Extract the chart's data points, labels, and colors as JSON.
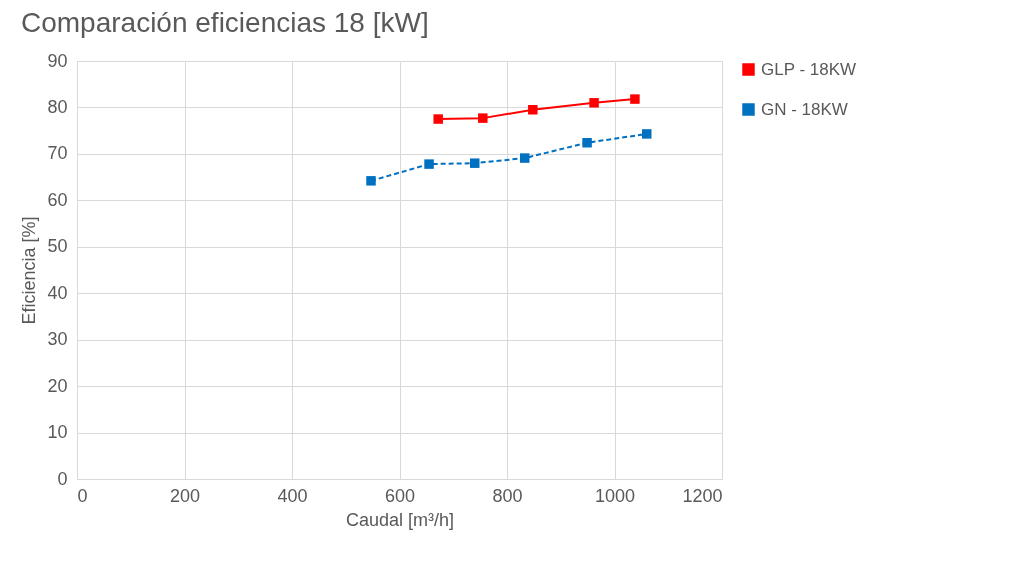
{
  "chart_data": {
    "type": "line",
    "title": "Comparación eficiencias 18 [kW]",
    "xlabel": "Caudal [m³/h]",
    "ylabel": "Eficiencia [%]",
    "xlim": [
      0,
      1200
    ],
    "xticks": [
      0,
      200,
      400,
      600,
      800,
      1000,
      1200
    ],
    "ylim": [
      0,
      90
    ],
    "yticks": [
      0,
      10,
      20,
      30,
      40,
      50,
      60,
      70,
      80,
      90
    ],
    "grid": true,
    "legend": "right",
    "marker": "square",
    "series": [
      {
        "name": "GLP - 18KW",
        "color": "#ff0000",
        "line_style": "solid",
        "x": [
          672,
          755,
          848,
          962,
          1038
        ],
        "values": [
          77.5,
          77.7,
          79.5,
          81,
          81.8
        ]
      },
      {
        "name": "GN - 18KW",
        "color": "#0070c0",
        "line_style": "dashed",
        "x": [
          547,
          655,
          740,
          833,
          949,
          1060
        ],
        "values": [
          64.2,
          67.8,
          68,
          69.1,
          72.4,
          74.3
        ]
      }
    ]
  }
}
